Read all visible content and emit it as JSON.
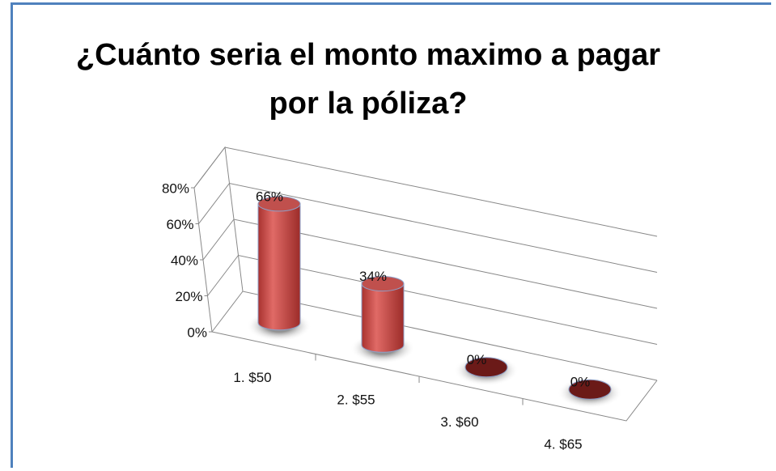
{
  "chart_data": {
    "type": "bar",
    "title": "¿Cuánto seria el monto maximo a pagar por la póliza?",
    "categories": [
      "1. $50",
      "2. $55",
      "3. $60",
      "4. $65"
    ],
    "values": [
      66,
      34,
      0,
      0
    ],
    "value_labels": [
      "66%",
      "34%",
      "0%",
      "0%"
    ],
    "color": "#c0504d",
    "ylim": [
      0,
      80
    ],
    "yticks": [
      {
        "value": 0,
        "label": "0%"
      },
      {
        "value": 20,
        "label": "20%"
      },
      {
        "value": 40,
        "label": "40%"
      },
      {
        "value": 60,
        "label": "60%"
      },
      {
        "value": 80,
        "label": "80%"
      }
    ],
    "grid": true
  }
}
